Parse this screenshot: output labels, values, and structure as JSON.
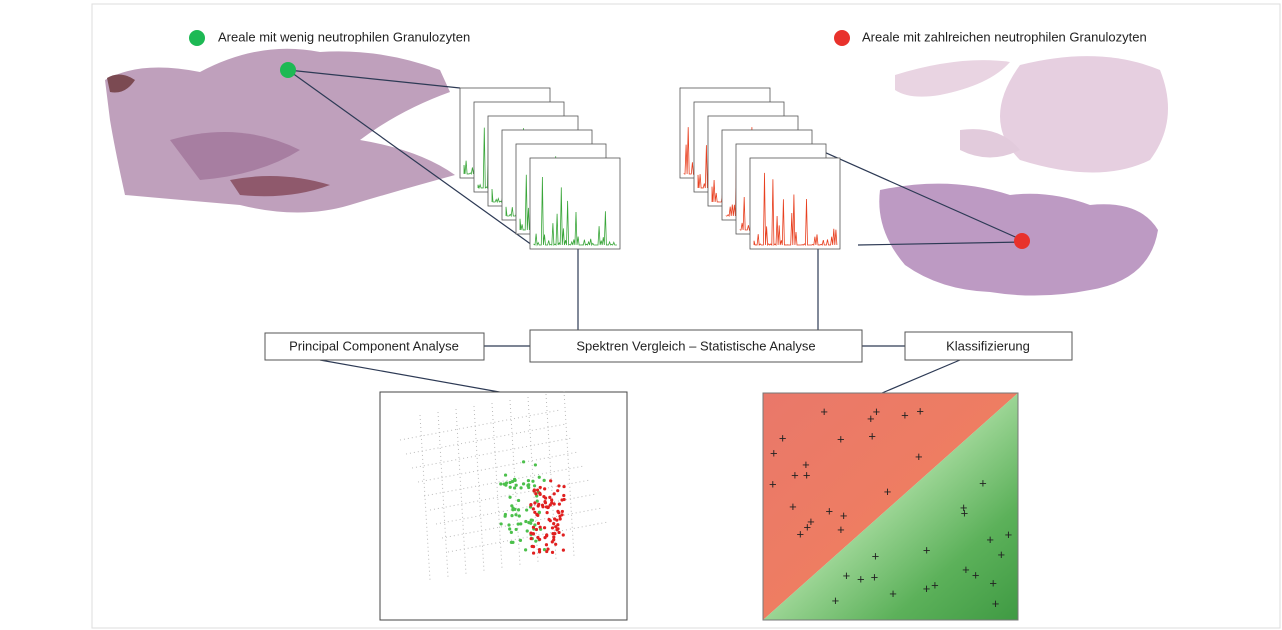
{
  "legend": {
    "low": "Areale mit wenig neutrophilen Granulozyten",
    "high": "Areale mit zahlreichen neutrophilen Granulozyten"
  },
  "boxes": {
    "pca": "Principal Component  Analyse",
    "comparison": "Spektren Vergleich – Statistische Analyse",
    "classification": "Klassifizierung"
  }
}
